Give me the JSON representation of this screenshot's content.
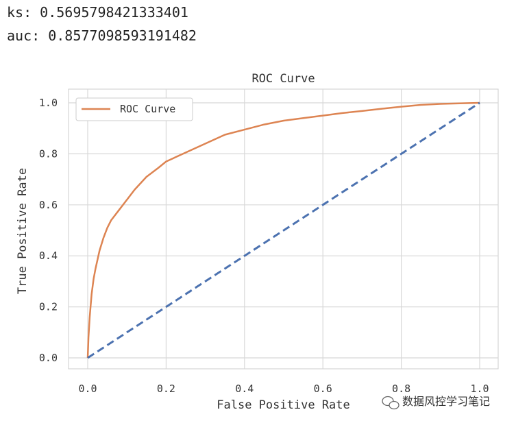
{
  "output": {
    "ks_line": "ks: 0.5695798421333401",
    "auc_line": "auc: 0.8577098593191482"
  },
  "chart_data": {
    "type": "line",
    "title": "ROC Curve",
    "xlabel": "False Positive Rate",
    "ylabel": "True Positive Rate",
    "xlim": [
      0,
      1
    ],
    "ylim": [
      0,
      1
    ],
    "xticks": [
      0.0,
      0.2,
      0.4,
      0.6,
      0.8,
      1.0
    ],
    "xtick_labels": [
      "0.0",
      "0.2",
      "0.4",
      "0.6",
      "0.8",
      "1.0"
    ],
    "yticks": [
      0.0,
      0.2,
      0.4,
      0.6,
      0.8,
      1.0
    ],
    "ytick_labels": [
      "0.0",
      "0.2",
      "0.4",
      "0.6",
      "0.8",
      "1.0"
    ],
    "grid": true,
    "legend_position": "upper-left",
    "series": [
      {
        "name": "ROC Curve",
        "color": "#dd8452",
        "style": "solid",
        "x": [
          0,
          0.002,
          0.005,
          0.01,
          0.015,
          0.02,
          0.03,
          0.04,
          0.05,
          0.06,
          0.08,
          0.1,
          0.12,
          0.15,
          0.18,
          0.2,
          0.25,
          0.3,
          0.35,
          0.4,
          0.45,
          0.5,
          0.55,
          0.6,
          0.65,
          0.7,
          0.75,
          0.8,
          0.85,
          0.9,
          0.95,
          1.0
        ],
        "y": [
          0,
          0.08,
          0.16,
          0.25,
          0.31,
          0.35,
          0.42,
          0.47,
          0.51,
          0.54,
          0.58,
          0.62,
          0.66,
          0.71,
          0.745,
          0.77,
          0.805,
          0.84,
          0.875,
          0.895,
          0.915,
          0.93,
          0.94,
          0.95,
          0.96,
          0.968,
          0.977,
          0.985,
          0.992,
          0.996,
          0.998,
          1.0
        ]
      },
      {
        "color": "#4c72b0",
        "style": "dashed",
        "x": [
          0,
          1
        ],
        "y": [
          0,
          1
        ]
      }
    ]
  },
  "watermark": {
    "icon": "wechat-icon",
    "text": "数据风控学习笔记"
  }
}
